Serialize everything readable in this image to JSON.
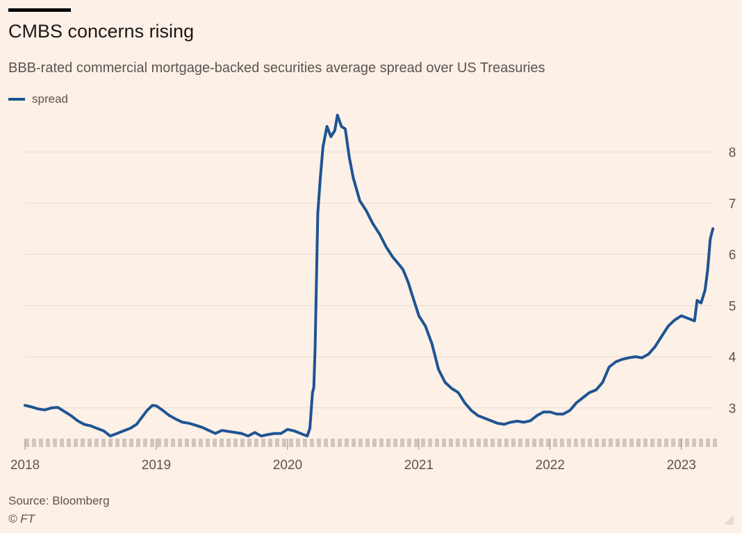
{
  "title": "CMBS concerns rising",
  "subtitle": "BBB-rated commercial mortgage-backed securities average spread over US Treasuries",
  "source": "Source: Bloomberg",
  "credit": "© FT",
  "colors": {
    "line": "#1e5493",
    "grid": "#e7dcd3",
    "background": "#fdf0e6"
  },
  "icons": {
    "resize": "resize-corner-icon"
  },
  "chart_data": {
    "type": "line",
    "title": "CMBS concerns rising",
    "subtitle": "BBB-rated commercial mortgage-backed securities average spread over US Treasuries",
    "xlabel": "",
    "ylabel": "",
    "x_ticks": [
      "2018",
      "2019",
      "2020",
      "2021",
      "2022",
      "2023"
    ],
    "y_ticks": [
      3,
      4,
      5,
      6,
      7,
      8
    ],
    "xlim": [
      2018.0,
      2023.25
    ],
    "ylim": [
      2.4,
      8.8
    ],
    "y_axis_side": "right",
    "grid": "horizontal",
    "legend": "top-left",
    "series": [
      {
        "name": "spread",
        "color": "#1e5493",
        "points": [
          [
            2018.0,
            3.05
          ],
          [
            2018.05,
            3.02
          ],
          [
            2018.1,
            2.98
          ],
          [
            2018.15,
            2.96
          ],
          [
            2018.2,
            3.0
          ],
          [
            2018.25,
            3.01
          ],
          [
            2018.3,
            2.93
          ],
          [
            2018.35,
            2.85
          ],
          [
            2018.4,
            2.75
          ],
          [
            2018.45,
            2.68
          ],
          [
            2018.5,
            2.65
          ],
          [
            2018.55,
            2.6
          ],
          [
            2018.6,
            2.55
          ],
          [
            2018.65,
            2.45
          ],
          [
            2018.7,
            2.5
          ],
          [
            2018.75,
            2.55
          ],
          [
            2018.8,
            2.6
          ],
          [
            2018.85,
            2.68
          ],
          [
            2018.9,
            2.85
          ],
          [
            2018.93,
            2.95
          ],
          [
            2018.97,
            3.05
          ],
          [
            2019.0,
            3.04
          ],
          [
            2019.05,
            2.95
          ],
          [
            2019.1,
            2.85
          ],
          [
            2019.15,
            2.78
          ],
          [
            2019.2,
            2.72
          ],
          [
            2019.25,
            2.7
          ],
          [
            2019.3,
            2.66
          ],
          [
            2019.35,
            2.62
          ],
          [
            2019.4,
            2.56
          ],
          [
            2019.45,
            2.5
          ],
          [
            2019.5,
            2.56
          ],
          [
            2019.55,
            2.54
          ],
          [
            2019.6,
            2.52
          ],
          [
            2019.65,
            2.5
          ],
          [
            2019.7,
            2.45
          ],
          [
            2019.75,
            2.52
          ],
          [
            2019.8,
            2.45
          ],
          [
            2019.85,
            2.48
          ],
          [
            2019.9,
            2.5
          ],
          [
            2019.95,
            2.5
          ],
          [
            2020.0,
            2.58
          ],
          [
            2020.05,
            2.55
          ],
          [
            2020.1,
            2.5
          ],
          [
            2020.15,
            2.45
          ],
          [
            2020.17,
            2.6
          ],
          [
            2020.19,
            3.3
          ],
          [
            2020.2,
            3.4
          ],
          [
            2020.21,
            4.2
          ],
          [
            2020.23,
            6.8
          ],
          [
            2020.25,
            7.5
          ],
          [
            2020.27,
            8.1
          ],
          [
            2020.3,
            8.5
          ],
          [
            2020.33,
            8.3
          ],
          [
            2020.36,
            8.42
          ],
          [
            2020.38,
            8.72
          ],
          [
            2020.41,
            8.5
          ],
          [
            2020.44,
            8.45
          ],
          [
            2020.47,
            7.9
          ],
          [
            2020.5,
            7.5
          ],
          [
            2020.55,
            7.05
          ],
          [
            2020.6,
            6.85
          ],
          [
            2020.65,
            6.6
          ],
          [
            2020.7,
            6.4
          ],
          [
            2020.75,
            6.15
          ],
          [
            2020.8,
            5.95
          ],
          [
            2020.85,
            5.8
          ],
          [
            2020.88,
            5.7
          ],
          [
            2020.92,
            5.45
          ],
          [
            2020.95,
            5.2
          ],
          [
            2021.0,
            4.8
          ],
          [
            2021.05,
            4.6
          ],
          [
            2021.1,
            4.25
          ],
          [
            2021.15,
            3.75
          ],
          [
            2021.2,
            3.5
          ],
          [
            2021.25,
            3.38
          ],
          [
            2021.3,
            3.3
          ],
          [
            2021.35,
            3.1
          ],
          [
            2021.4,
            2.95
          ],
          [
            2021.45,
            2.85
          ],
          [
            2021.5,
            2.8
          ],
          [
            2021.55,
            2.75
          ],
          [
            2021.6,
            2.7
          ],
          [
            2021.65,
            2.68
          ],
          [
            2021.7,
            2.72
          ],
          [
            2021.75,
            2.74
          ],
          [
            2021.8,
            2.72
          ],
          [
            2021.85,
            2.75
          ],
          [
            2021.9,
            2.85
          ],
          [
            2021.95,
            2.92
          ],
          [
            2022.0,
            2.92
          ],
          [
            2022.05,
            2.88
          ],
          [
            2022.1,
            2.88
          ],
          [
            2022.15,
            2.95
          ],
          [
            2022.2,
            3.1
          ],
          [
            2022.25,
            3.2
          ],
          [
            2022.3,
            3.3
          ],
          [
            2022.35,
            3.35
          ],
          [
            2022.4,
            3.5
          ],
          [
            2022.45,
            3.8
          ],
          [
            2022.5,
            3.9
          ],
          [
            2022.55,
            3.95
          ],
          [
            2022.6,
            3.98
          ],
          [
            2022.65,
            4.0
          ],
          [
            2022.7,
            3.98
          ],
          [
            2022.75,
            4.05
          ],
          [
            2022.8,
            4.2
          ],
          [
            2022.85,
            4.4
          ],
          [
            2022.9,
            4.6
          ],
          [
            2022.95,
            4.72
          ],
          [
            2023.0,
            4.8
          ],
          [
            2023.05,
            4.75
          ],
          [
            2023.1,
            4.7
          ],
          [
            2023.12,
            5.1
          ],
          [
            2023.15,
            5.05
          ],
          [
            2023.18,
            5.3
          ],
          [
            2023.2,
            5.7
          ],
          [
            2023.22,
            6.3
          ],
          [
            2023.24,
            6.5
          ]
        ]
      }
    ]
  }
}
